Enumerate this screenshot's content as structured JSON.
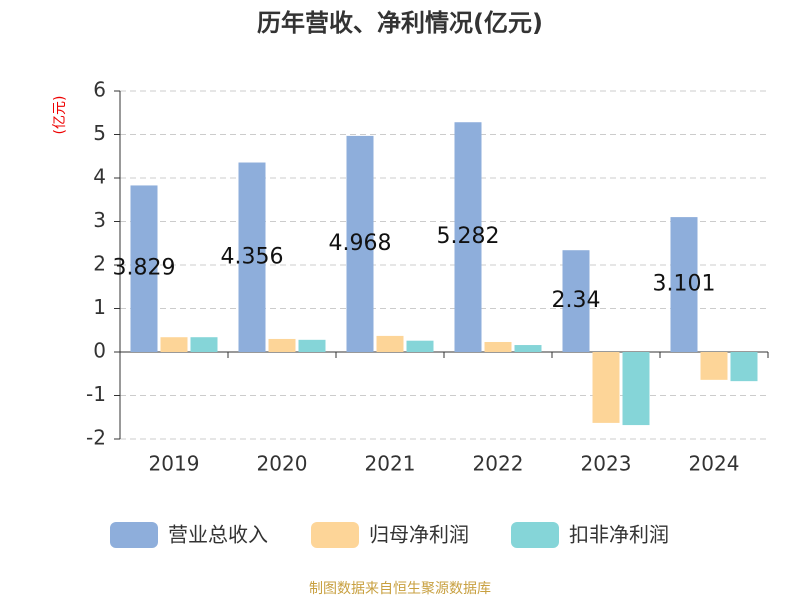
{
  "chart_data": {
    "type": "bar",
    "title": "历年营收、净利情况(亿元)",
    "y_label": "(亿元)",
    "source": "制图数据来自恒生聚源数据库",
    "categories": [
      "2019",
      "2020",
      "2021",
      "2022",
      "2023",
      "2024"
    ],
    "series": [
      {
        "name": "营业总收入",
        "color": "#8eaedb",
        "values": [
          3.829,
          4.356,
          4.968,
          5.282,
          2.34,
          3.101
        ]
      },
      {
        "name": "归母净利润",
        "color": "#fdd598",
        "values": [
          0.34,
          0.3,
          0.37,
          0.23,
          -1.63,
          -0.64
        ]
      },
      {
        "name": "扣非净利润",
        "color": "#85d5d8",
        "values": [
          0.34,
          0.28,
          0.26,
          0.16,
          -1.68,
          -0.67
        ]
      }
    ],
    "ylim": [
      -2,
      6
    ],
    "yticks": [
      -2,
      -1,
      0,
      1,
      2,
      3,
      4,
      5,
      6
    ],
    "grid": true
  }
}
